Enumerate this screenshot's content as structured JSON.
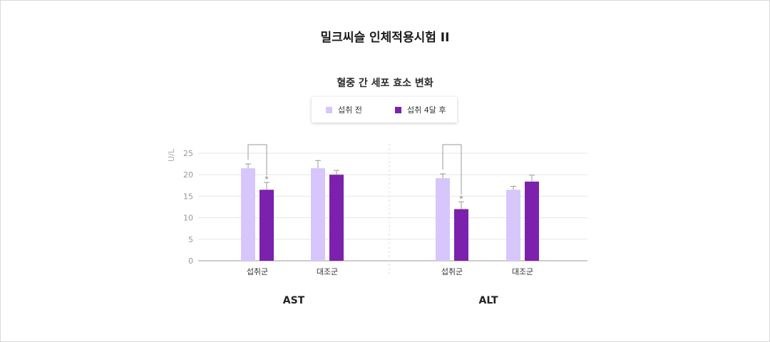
{
  "title": "밀크씨슬 인체적용시험 II",
  "subtitle": "혈중 간 세포 효소 변화",
  "legend": [
    {
      "label": "섭취 전",
      "color": "#d7c6fb"
    },
    {
      "label": "섭취 4달 후",
      "color": "#7b21ad"
    }
  ],
  "chart_data": {
    "type": "bar",
    "ylabel": "U/L",
    "ylim": [
      0,
      25
    ],
    "yticks": [
      0,
      5,
      10,
      15,
      20,
      25
    ],
    "grid": true,
    "legend_position": "top-center",
    "panels": [
      {
        "name": "AST",
        "categories": [
          "섭취군",
          "대조군"
        ],
        "series": [
          {
            "name": "섭취 전",
            "values": [
              21.5,
              21.5
            ],
            "errors": [
              1.0,
              1.8
            ]
          },
          {
            "name": "섭취 4달 후",
            "values": [
              16.5,
              20.0
            ],
            "errors": [
              1.7,
              1.0
            ]
          }
        ],
        "significance": {
          "category_index": 0,
          "marker": "*"
        }
      },
      {
        "name": "ALT",
        "categories": [
          "섭취군",
          "대조군"
        ],
        "series": [
          {
            "name": "섭취 전",
            "values": [
              19.2,
              16.5
            ],
            "errors": [
              1.0,
              0.8
            ]
          },
          {
            "name": "섭취 4달 후",
            "values": [
              12.0,
              18.4
            ],
            "errors": [
              1.7,
              1.5
            ]
          }
        ],
        "significance": {
          "category_index": 0,
          "marker": "*"
        }
      }
    ]
  }
}
